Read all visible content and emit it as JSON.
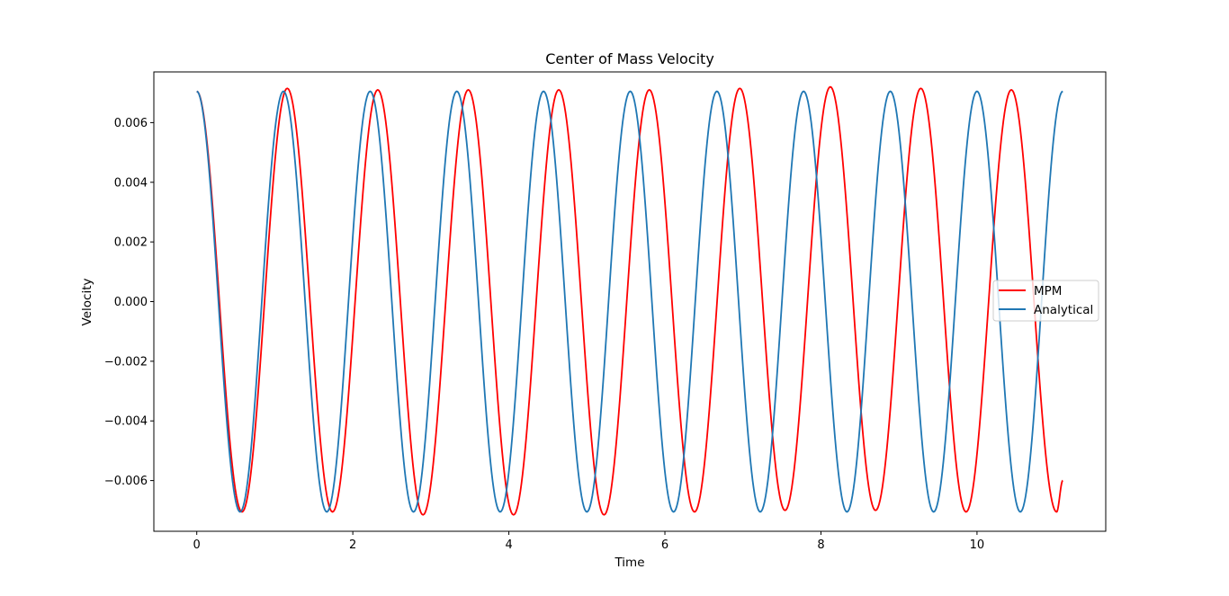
{
  "chart_data": {
    "type": "line",
    "title": "Center of Mass Velocity",
    "xlabel": "Time",
    "ylabel": "Velocity",
    "xlim": [
      -0.55,
      11.65
    ],
    "ylim": [
      -0.0077,
      0.0077
    ],
    "x_ticks": [
      0,
      2,
      4,
      6,
      8,
      10
    ],
    "x_tick_labels": [
      "0",
      "2",
      "4",
      "6",
      "8",
      "10"
    ],
    "y_ticks": [
      -0.006,
      -0.004,
      -0.002,
      0.0,
      0.002,
      0.004,
      0.006
    ],
    "y_tick_labels": [
      "−0.006",
      "−0.004",
      "−0.002",
      "0.000",
      "0.002",
      "0.004",
      "0.006"
    ],
    "grid": false,
    "legend_position": "center-right",
    "series": [
      {
        "name": "MPM",
        "color": "#ff0000",
        "x": [
          0.0,
          0.58,
          1.16,
          1.74,
          2.32,
          2.9,
          3.48,
          4.06,
          4.64,
          5.22,
          5.8,
          6.38,
          6.96,
          7.54,
          8.12,
          8.7,
          9.28,
          9.86,
          10.44,
          11.02,
          11.1
        ],
        "y": [
          0.00705,
          -0.00705,
          0.00715,
          -0.00705,
          0.0071,
          -0.00715,
          0.0071,
          -0.00715,
          0.0071,
          -0.00715,
          0.0071,
          -0.00705,
          0.00715,
          -0.007,
          0.0072,
          -0.007,
          0.00715,
          -0.00705,
          0.0071,
          -0.00705,
          -0.006
        ]
      },
      {
        "name": "Analytical",
        "color": "#1f77b4",
        "x": [
          0.0,
          0.5556,
          1.1111,
          1.6667,
          2.2222,
          2.7778,
          3.3333,
          3.8889,
          4.4444,
          5.0,
          5.5556,
          6.1111,
          6.6667,
          7.2222,
          7.7778,
          8.3333,
          8.8889,
          9.4444,
          10.0,
          10.5556,
          11.1
        ],
        "y": [
          0.00705,
          -0.00705,
          0.00705,
          -0.00705,
          0.00705,
          -0.00705,
          0.00705,
          -0.00705,
          0.00705,
          -0.00705,
          0.00705,
          -0.00705,
          0.00705,
          -0.00705,
          0.00705,
          -0.00705,
          0.00705,
          -0.00705,
          0.00705,
          -0.00705,
          0.00705
        ]
      }
    ]
  }
}
